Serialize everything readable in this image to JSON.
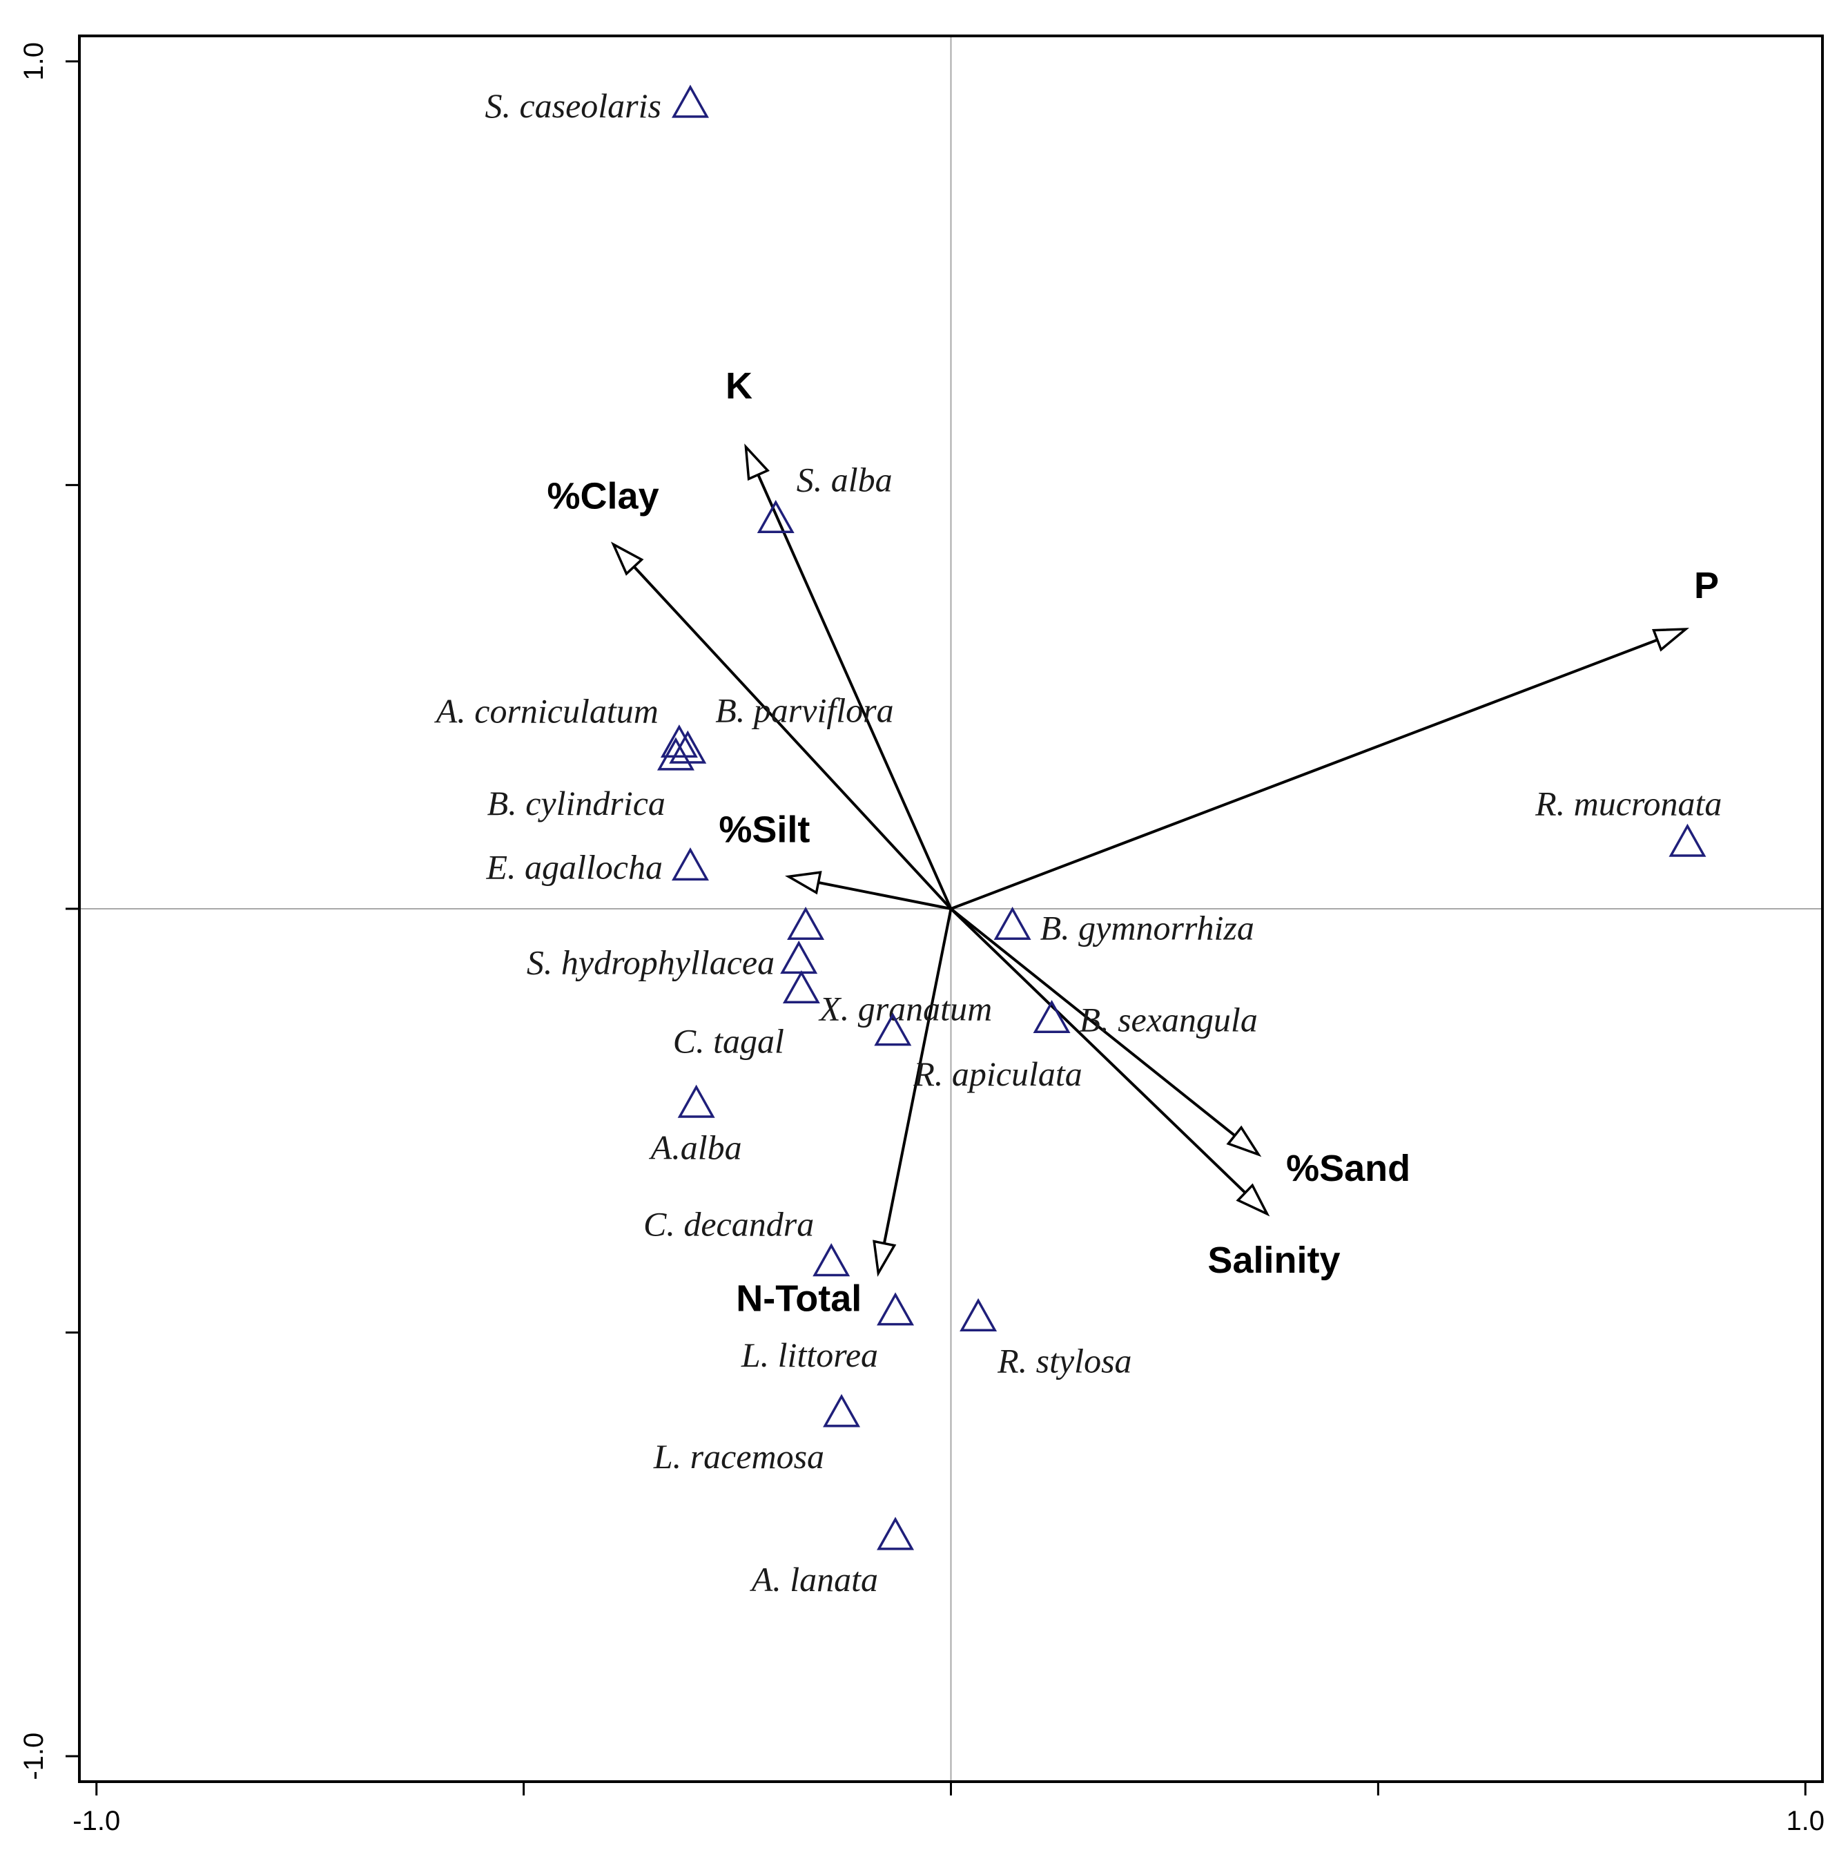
{
  "chart_data": {
    "type": "scatter",
    "title": "",
    "xlabel": "",
    "ylabel": "",
    "xlim": [
      -1.02,
      1.02
    ],
    "ylim": [
      -1.03,
      1.03
    ],
    "x_ticks": [
      -1.0,
      -0.5,
      0.0,
      0.5,
      1.0
    ],
    "y_ticks": [
      -1.0,
      -0.5,
      0.0,
      0.5,
      1.0
    ],
    "x_tick_labels": [
      "-1.0",
      "",
      "",
      "",
      "1.0"
    ],
    "y_tick_labels": [
      "-1.0",
      "",
      "",
      "",
      "1.0"
    ],
    "reference_lines": [
      0,
      0
    ],
    "grid": false,
    "marker": "triangle-open",
    "marker_color": "#1f1f7a",
    "arrow_color": "#000000",
    "species": [
      {
        "name": "S. caseolaris",
        "x": -0.305,
        "y": 0.95
      },
      {
        "name": "S. alba",
        "x": -0.205,
        "y": 0.46
      },
      {
        "name": "A. corniculatum",
        "x": -0.318,
        "y": 0.195
      },
      {
        "name": "B. parviflora",
        "x": -0.308,
        "y": 0.188
      },
      {
        "name": "B. cylindrica",
        "x": -0.322,
        "y": 0.18
      },
      {
        "name": "E. agallocha",
        "x": -0.305,
        "y": 0.05
      },
      {
        "name": "R. mucronata",
        "x": 0.862,
        "y": 0.078
      },
      {
        "name": "B. gymnorrhiza",
        "x": 0.072,
        "y": -0.02
      },
      {
        "name": "S. hydrophyllacea",
        "x": -0.17,
        "y": -0.02
      },
      {
        "name": "X. granatum",
        "x": -0.178,
        "y": -0.06
      },
      {
        "name": "C. tagal",
        "x": -0.175,
        "y": -0.095
      },
      {
        "name": "B. sexangula",
        "x": 0.118,
        "y": -0.13
      },
      {
        "name": "R. apiculata",
        "x": -0.068,
        "y": -0.145
      },
      {
        "name": "A.alba",
        "x": -0.298,
        "y": -0.23
      },
      {
        "name": "C. decandra",
        "x": -0.14,
        "y": -0.417
      },
      {
        "name": "L. littorea",
        "x": -0.065,
        "y": -0.475
      },
      {
        "name": "R. stylosa",
        "x": 0.032,
        "y": -0.482
      },
      {
        "name": "L. racemosa",
        "x": -0.128,
        "y": -0.595
      },
      {
        "name": "A. lanata",
        "x": -0.065,
        "y": -0.74
      }
    ],
    "environmental_vectors": [
      {
        "name": "K",
        "x": -0.24,
        "y": 0.545
      },
      {
        "name": "%Clay",
        "x": -0.395,
        "y": 0.43
      },
      {
        "name": "P",
        "x": 0.86,
        "y": 0.33
      },
      {
        "name": "%Silt",
        "x": -0.19,
        "y": 0.038
      },
      {
        "name": "%Sand",
        "x": 0.36,
        "y": -0.29
      },
      {
        "name": "Salinity",
        "x": 0.37,
        "y": -0.36
      },
      {
        "name": "N-Total",
        "x": -0.085,
        "y": -0.43
      }
    ]
  }
}
